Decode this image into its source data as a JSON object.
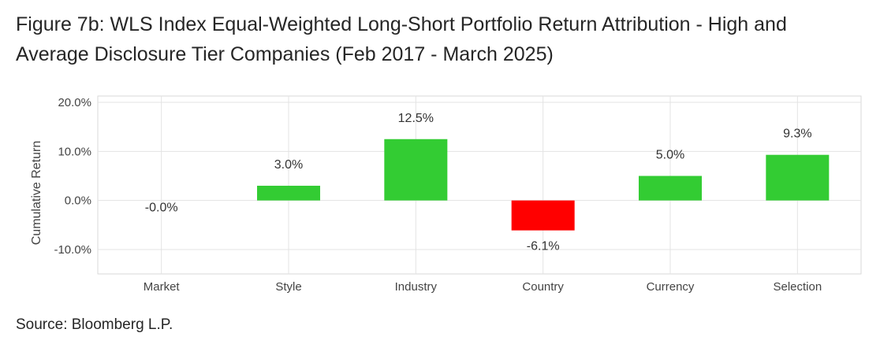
{
  "header": {
    "title_line1": "Figure 7b: WLS Index Equal-Weighted Long-Short Portfolio Return Attribution - High and",
    "title_line2": "Average Disclosure Tier Companies (Feb 2017 - March 2025)"
  },
  "footer": {
    "source": "Source: Bloomberg L.P."
  },
  "chart_data": {
    "type": "bar",
    "title": "Figure 7b: WLS Index Equal-Weighted Long-Short Portfolio Return Attribution - High and Average Disclosure Tier Companies (Feb 2017 - March 2025)",
    "xlabel": "",
    "ylabel": "Cumulative Return",
    "categories": [
      "Market",
      "Style",
      "Industry",
      "Country",
      "Currency",
      "Selection"
    ],
    "values": [
      -0.0,
      3.0,
      12.5,
      -6.1,
      5.0,
      9.3
    ],
    "data_labels": [
      "-0.0%",
      "3.0%",
      "12.5%",
      "-6.1%",
      "5.0%",
      "9.3%"
    ],
    "yticks": [
      -10,
      0,
      10,
      20
    ],
    "ytick_labels": [
      "-10.0%",
      "0.0%",
      "10.0%",
      "20.0%"
    ],
    "ylim": [
      -15,
      20
    ],
    "grid": true,
    "legend": "none",
    "colors": {
      "positive": "#33cc33",
      "negative": "#ff0000"
    }
  }
}
